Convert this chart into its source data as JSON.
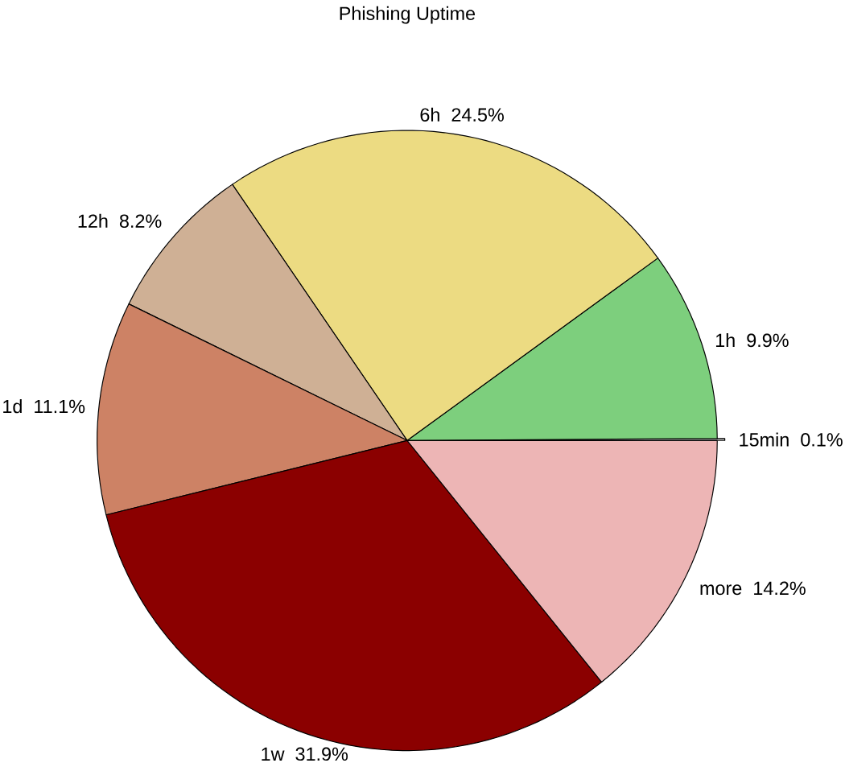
{
  "chart_data": {
    "type": "pie",
    "title": "Phishing Uptime",
    "categories": [
      "15min",
      "1h",
      "6h",
      "12h",
      "1d",
      "1w",
      "more"
    ],
    "values": [
      0.1,
      9.9,
      24.5,
      8.2,
      11.1,
      31.9,
      14.2
    ],
    "value_labels": [
      "0.1%",
      "9.9%",
      "24.5%",
      "8.2%",
      "11.1%",
      "31.9%",
      "14.2%"
    ],
    "colors": [
      "#f4f4f4",
      "#7dcf7d",
      "#ecdb82",
      "#cfb095",
      "#cd8265",
      "#8b0000",
      "#edb5b5"
    ]
  }
}
